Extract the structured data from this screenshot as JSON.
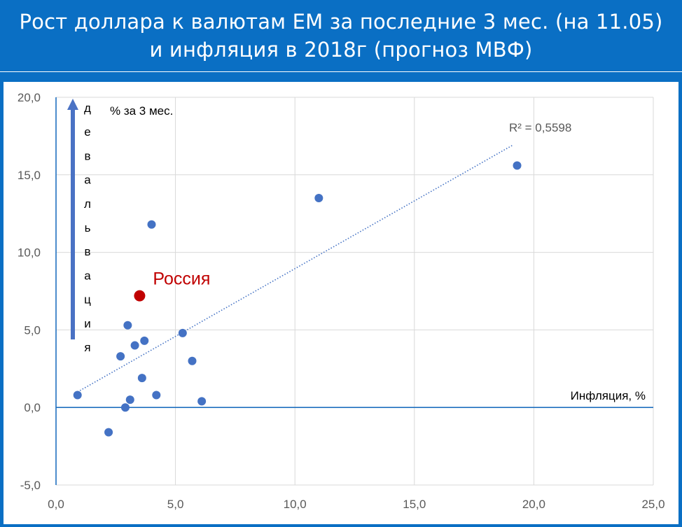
{
  "header": {
    "line1": "Рост доллара к валютам EM за последние 3 мес. (на 11.05)",
    "line2": "и инфляция в 2018г (прогноз МВФ)"
  },
  "chart_data": {
    "type": "scatter",
    "xlim": [
      0,
      25
    ],
    "ylim": [
      -5,
      20
    ],
    "x_ticks": [
      "0,0",
      "5,0",
      "10,0",
      "15,0",
      "20,0",
      "25,0"
    ],
    "y_ticks": [
      "-5,0",
      "0,0",
      "5,0",
      "10,0",
      "15,0",
      "20,0"
    ],
    "xlabel": "Инфляция, %",
    "ylabel": "% за 3 мес.",
    "arrow_label": "девальвация",
    "grid": true,
    "points": [
      {
        "x": 0.9,
        "y": 0.8
      },
      {
        "x": 2.2,
        "y": -1.6
      },
      {
        "x": 2.7,
        "y": 3.3
      },
      {
        "x": 2.9,
        "y": 0.0
      },
      {
        "x": 3.0,
        "y": 5.3
      },
      {
        "x": 3.1,
        "y": 0.5
      },
      {
        "x": 3.3,
        "y": 4.0
      },
      {
        "x": 3.6,
        "y": 1.9
      },
      {
        "x": 3.7,
        "y": 4.3
      },
      {
        "x": 4.0,
        "y": 11.8
      },
      {
        "x": 4.2,
        "y": 0.8
      },
      {
        "x": 5.3,
        "y": 4.8
      },
      {
        "x": 5.7,
        "y": 3.0
      },
      {
        "x": 6.1,
        "y": 0.4
      },
      {
        "x": 11.0,
        "y": 13.5
      },
      {
        "x": 19.3,
        "y": 15.6
      }
    ],
    "highlight": {
      "x": 3.5,
      "y": 7.2,
      "label": "Россия"
    },
    "trendline": {
      "x": [
        0.9,
        19.1
      ],
      "y": [
        1.0,
        16.9
      ],
      "r2_label": "R² = 0,5598"
    },
    "colors": {
      "points": "#4472c4",
      "highlight": "#c00000",
      "axis": "#1f6fbf",
      "grid": "#d9d9d9",
      "arrow": "#4a72c4"
    }
  }
}
